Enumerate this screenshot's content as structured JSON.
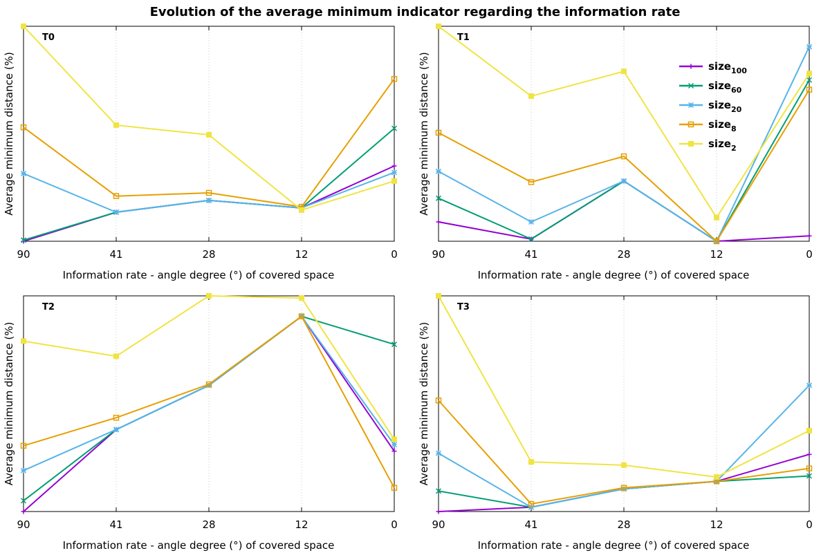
{
  "title": "Evolution of the average minimum indicator regarding the information rate",
  "colors": {
    "size100": "#9400d3",
    "size60": "#009e73",
    "size20": "#56b4e9",
    "size8": "#e69f00",
    "size2": "#f0e442"
  },
  "legend": {
    "placement": "top-right of T1 panel",
    "entries": [
      {
        "base": "size",
        "sub": "100",
        "key": "size100",
        "marker": "plus"
      },
      {
        "base": "size",
        "sub": "60",
        "key": "size60",
        "marker": "cross"
      },
      {
        "base": "size",
        "sub": "20",
        "key": "size20",
        "marker": "star"
      },
      {
        "base": "size",
        "sub": "8",
        "key": "size8",
        "marker": "open-square"
      },
      {
        "base": "size",
        "sub": "2",
        "key": "size2",
        "marker": "filled-square"
      }
    ]
  },
  "chart_data": [
    {
      "type": "line",
      "panel_label": "T0",
      "xlabel": "Information rate - angle degree (°)  of covered space",
      "ylabel": "Average minimum distance (%)",
      "categories": [
        "90",
        "41",
        "28",
        "12",
        "0"
      ],
      "ylim": [
        0,
        100
      ],
      "grid": "vertical dotted",
      "series": [
        {
          "name": "size100",
          "values": [
            0,
            13.5,
            19,
            15.5,
            35
          ]
        },
        {
          "name": "size60",
          "values": [
            0.5,
            13.5,
            19,
            15.5,
            52.5
          ]
        },
        {
          "name": "size20",
          "values": [
            31.5,
            13.5,
            19,
            15.5,
            32
          ]
        },
        {
          "name": "size8",
          "values": [
            53,
            21,
            22.5,
            16,
            75.5
          ]
        },
        {
          "name": "size2",
          "values": [
            100,
            54,
            49.5,
            14.5,
            28
          ]
        }
      ]
    },
    {
      "type": "line",
      "panel_label": "T1",
      "xlabel": "Information rate - angle degree (°)  of covered space",
      "ylabel": "Average minimum distance (%)",
      "categories": [
        "90",
        "41",
        "28",
        "12",
        "0"
      ],
      "ylim": [
        0,
        100
      ],
      "grid": "vertical dotted",
      "series": [
        {
          "name": "size100",
          "values": [
            9,
            1,
            28,
            0,
            2.5
          ]
        },
        {
          "name": "size60",
          "values": [
            20,
            1,
            28,
            0,
            75
          ]
        },
        {
          "name": "size20",
          "values": [
            32.5,
            9,
            28,
            0,
            90.5
          ]
        },
        {
          "name": "size8",
          "values": [
            50.5,
            27.5,
            39.5,
            0,
            70.5
          ]
        },
        {
          "name": "size2",
          "values": [
            100,
            67.5,
            79,
            11,
            78
          ]
        }
      ]
    },
    {
      "type": "line",
      "panel_label": "T2",
      "xlabel": "Information rate - angle degree (°)  of covered space",
      "ylabel": "Average minimum distance (%)",
      "categories": [
        "90",
        "41",
        "28",
        "12",
        "0"
      ],
      "ylim": [
        0,
        100
      ],
      "grid": "vertical dotted",
      "series": [
        {
          "name": "size100",
          "values": [
            0,
            38,
            58.5,
            90.5,
            28
          ]
        },
        {
          "name": "size60",
          "values": [
            5,
            38,
            58.5,
            90.5,
            77.5
          ]
        },
        {
          "name": "size20",
          "values": [
            19,
            38,
            58.5,
            90.5,
            31
          ]
        },
        {
          "name": "size8",
          "values": [
            30.5,
            43.5,
            59,
            90.5,
            11
          ]
        },
        {
          "name": "size2",
          "values": [
            79,
            72,
            100,
            99,
            33.5
          ]
        }
      ]
    },
    {
      "type": "line",
      "panel_label": "T3",
      "xlabel": "Information rate - angle degree (°)  of covered space",
      "ylabel": "Average minimum distance (%)",
      "categories": [
        "90",
        "41",
        "28",
        "12",
        "0"
      ],
      "ylim": [
        0,
        100
      ],
      "grid": "vertical dotted",
      "series": [
        {
          "name": "size100",
          "values": [
            0,
            2,
            10.5,
            14,
            26.5
          ]
        },
        {
          "name": "size60",
          "values": [
            9.5,
            2,
            10.5,
            14,
            16.5
          ]
        },
        {
          "name": "size20",
          "values": [
            27,
            2,
            10.5,
            14,
            58.5
          ]
        },
        {
          "name": "size8",
          "values": [
            51.5,
            3.5,
            11,
            14,
            20
          ]
        },
        {
          "name": "size2",
          "values": [
            100,
            23,
            21.5,
            16,
            37.5
          ]
        }
      ]
    }
  ]
}
